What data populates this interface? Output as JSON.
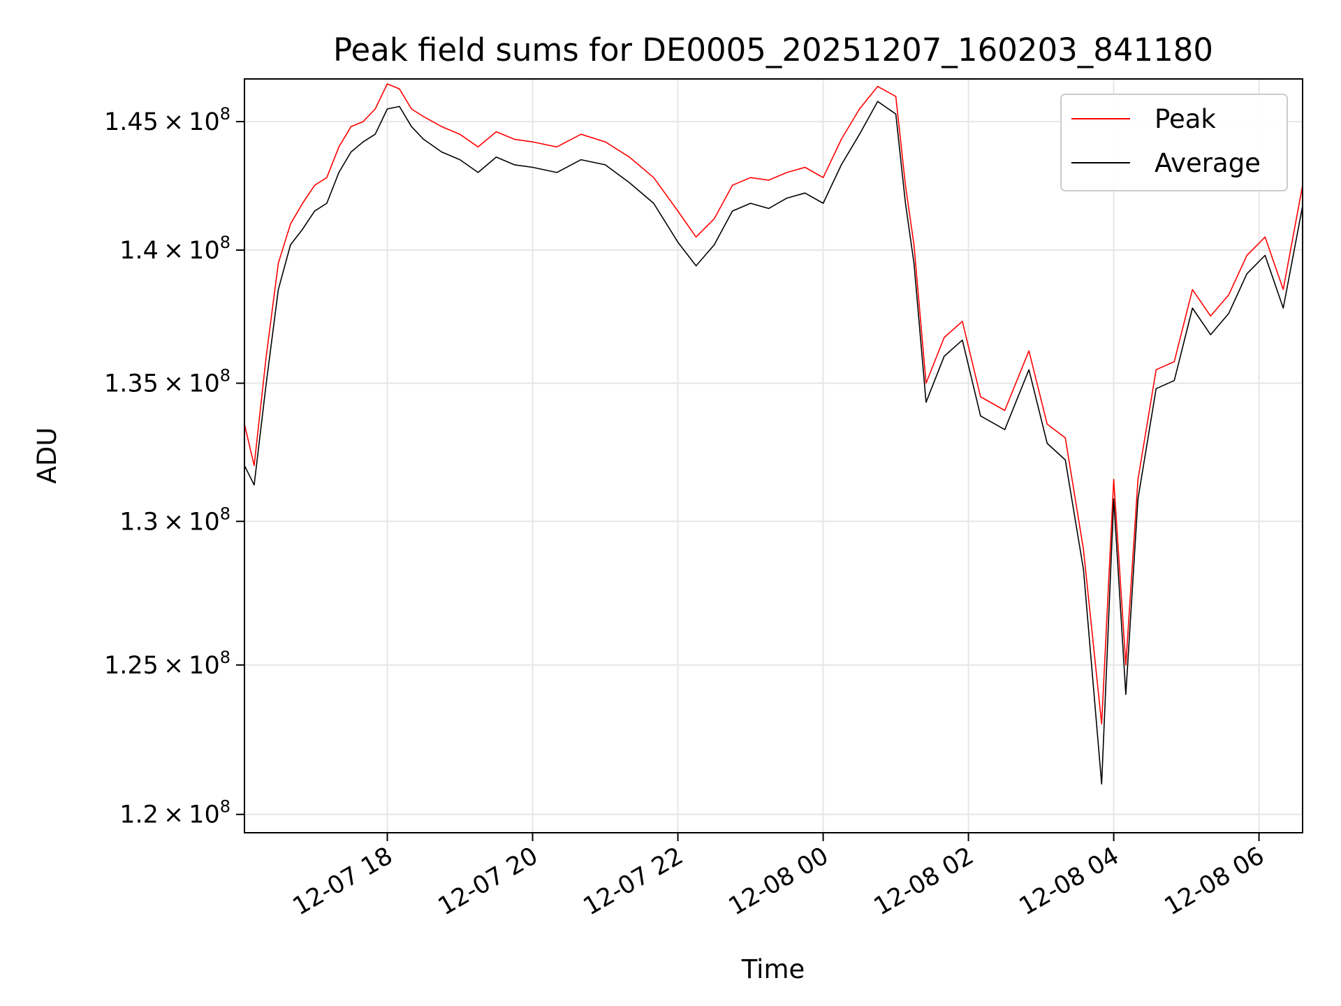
{
  "chart_data": {
    "type": "line",
    "title": "Peak field sums for DE0005_20251207_160203_841180",
    "xlabel": "Time",
    "ylabel": "ADU",
    "x_range": [
      "2025-12-07 16:02",
      "2025-12-08 06:36"
    ],
    "ylim": [
      119400000,
      146700000
    ],
    "x_ticks": [
      {
        "t": "2025-12-07 18:00",
        "label": "12-07 18"
      },
      {
        "t": "2025-12-07 20:00",
        "label": "12-07 20"
      },
      {
        "t": "2025-12-07 22:00",
        "label": "12-07 22"
      },
      {
        "t": "2025-12-08 00:00",
        "label": "12-08 00"
      },
      {
        "t": "2025-12-08 02:00",
        "label": "12-08 02"
      },
      {
        "t": "2025-12-08 04:00",
        "label": "12-08 04"
      },
      {
        "t": "2025-12-08 06:00",
        "label": "12-08 06"
      }
    ],
    "y_ticks": [
      {
        "value": 120000000,
        "mantissa": "1.2",
        "exponent": "8"
      },
      {
        "value": 125000000,
        "mantissa": "1.25",
        "exponent": "8"
      },
      {
        "value": 130000000,
        "mantissa": "1.3",
        "exponent": "8"
      },
      {
        "value": 135000000,
        "mantissa": "1.35",
        "exponent": "8"
      },
      {
        "value": 140000000,
        "mantissa": "1.4",
        "exponent": "8"
      },
      {
        "value": 145000000,
        "mantissa": "1.45",
        "exponent": "8"
      }
    ],
    "grid": true,
    "legend_position": "top-right",
    "series": [
      {
        "name": "Peak",
        "color": "#ff0000",
        "points": [
          [
            "2025-12-07 16:02",
            133500000
          ],
          [
            "2025-12-07 16:10",
            132000000
          ],
          [
            "2025-12-07 16:20",
            136000000
          ],
          [
            "2025-12-07 16:30",
            139500000
          ],
          [
            "2025-12-07 16:40",
            141000000
          ],
          [
            "2025-12-07 16:50",
            141800000
          ],
          [
            "2025-12-07 17:00",
            142500000
          ],
          [
            "2025-12-07 17:10",
            142800000
          ],
          [
            "2025-12-07 17:20",
            144000000
          ],
          [
            "2025-12-07 17:30",
            144800000
          ],
          [
            "2025-12-07 17:40",
            145000000
          ],
          [
            "2025-12-07 17:50",
            145500000
          ],
          [
            "2025-12-07 18:00",
            146500000
          ],
          [
            "2025-12-07 18:10",
            146300000
          ],
          [
            "2025-12-07 18:20",
            145500000
          ],
          [
            "2025-12-07 18:30",
            145200000
          ],
          [
            "2025-12-07 18:45",
            144800000
          ],
          [
            "2025-12-07 19:00",
            144500000
          ],
          [
            "2025-12-07 19:15",
            144000000
          ],
          [
            "2025-12-07 19:30",
            144600000
          ],
          [
            "2025-12-07 19:45",
            144300000
          ],
          [
            "2025-12-07 20:00",
            144200000
          ],
          [
            "2025-12-07 20:20",
            144000000
          ],
          [
            "2025-12-07 20:40",
            144500000
          ],
          [
            "2025-12-07 21:00",
            144200000
          ],
          [
            "2025-12-07 21:20",
            143600000
          ],
          [
            "2025-12-07 21:40",
            142800000
          ],
          [
            "2025-12-07 22:00",
            141500000
          ],
          [
            "2025-12-07 22:15",
            140500000
          ],
          [
            "2025-12-07 22:30",
            141200000
          ],
          [
            "2025-12-07 22:45",
            142500000
          ],
          [
            "2025-12-07 23:00",
            142800000
          ],
          [
            "2025-12-07 23:15",
            142700000
          ],
          [
            "2025-12-07 23:30",
            143000000
          ],
          [
            "2025-12-07 23:45",
            143200000
          ],
          [
            "2025-12-08 00:00",
            142800000
          ],
          [
            "2025-12-08 00:15",
            144300000
          ],
          [
            "2025-12-08 00:30",
            145500000
          ],
          [
            "2025-12-08 00:45",
            146400000
          ],
          [
            "2025-12-08 01:00",
            146000000
          ],
          [
            "2025-12-08 01:08",
            142500000
          ],
          [
            "2025-12-08 01:15",
            140200000
          ],
          [
            "2025-12-08 01:25",
            135000000
          ],
          [
            "2025-12-08 01:40",
            136700000
          ],
          [
            "2025-12-08 01:55",
            137300000
          ],
          [
            "2025-12-08 02:10",
            134500000
          ],
          [
            "2025-12-08 02:30",
            134000000
          ],
          [
            "2025-12-08 02:50",
            136200000
          ],
          [
            "2025-12-08 03:05",
            133500000
          ],
          [
            "2025-12-08 03:20",
            133000000
          ],
          [
            "2025-12-08 03:35",
            129000000
          ],
          [
            "2025-12-08 03:50",
            123000000
          ],
          [
            "2025-12-08 04:00",
            131500000
          ],
          [
            "2025-12-08 04:10",
            125000000
          ],
          [
            "2025-12-08 04:20",
            131500000
          ],
          [
            "2025-12-08 04:35",
            135500000
          ],
          [
            "2025-12-08 04:50",
            135800000
          ],
          [
            "2025-12-08 05:05",
            138500000
          ],
          [
            "2025-12-08 05:20",
            137500000
          ],
          [
            "2025-12-08 05:35",
            138300000
          ],
          [
            "2025-12-08 05:50",
            139800000
          ],
          [
            "2025-12-08 06:05",
            140500000
          ],
          [
            "2025-12-08 06:20",
            138500000
          ],
          [
            "2025-12-08 06:36",
            142500000
          ]
        ]
      },
      {
        "name": "Average",
        "color": "#000000",
        "points": [
          [
            "2025-12-07 16:02",
            132000000
          ],
          [
            "2025-12-07 16:10",
            131300000
          ],
          [
            "2025-12-07 16:20",
            135000000
          ],
          [
            "2025-12-07 16:30",
            138500000
          ],
          [
            "2025-12-07 16:40",
            140200000
          ],
          [
            "2025-12-07 16:50",
            140800000
          ],
          [
            "2025-12-07 17:00",
            141500000
          ],
          [
            "2025-12-07 17:10",
            141800000
          ],
          [
            "2025-12-07 17:20",
            143000000
          ],
          [
            "2025-12-07 17:30",
            143800000
          ],
          [
            "2025-12-07 17:40",
            144200000
          ],
          [
            "2025-12-07 17:50",
            144500000
          ],
          [
            "2025-12-07 18:00",
            145500000
          ],
          [
            "2025-12-07 18:10",
            145600000
          ],
          [
            "2025-12-07 18:20",
            144800000
          ],
          [
            "2025-12-07 18:30",
            144300000
          ],
          [
            "2025-12-07 18:45",
            143800000
          ],
          [
            "2025-12-07 19:00",
            143500000
          ],
          [
            "2025-12-07 19:15",
            143000000
          ],
          [
            "2025-12-07 19:30",
            143600000
          ],
          [
            "2025-12-07 19:45",
            143300000
          ],
          [
            "2025-12-07 20:00",
            143200000
          ],
          [
            "2025-12-07 20:20",
            143000000
          ],
          [
            "2025-12-07 20:40",
            143500000
          ],
          [
            "2025-12-07 21:00",
            143300000
          ],
          [
            "2025-12-07 21:20",
            142600000
          ],
          [
            "2025-12-07 21:40",
            141800000
          ],
          [
            "2025-12-07 22:00",
            140300000
          ],
          [
            "2025-12-07 22:15",
            139400000
          ],
          [
            "2025-12-07 22:30",
            140200000
          ],
          [
            "2025-12-07 22:45",
            141500000
          ],
          [
            "2025-12-07 23:00",
            141800000
          ],
          [
            "2025-12-07 23:15",
            141600000
          ],
          [
            "2025-12-07 23:30",
            142000000
          ],
          [
            "2025-12-07 23:45",
            142200000
          ],
          [
            "2025-12-08 00:00",
            141800000
          ],
          [
            "2025-12-08 00:15",
            143300000
          ],
          [
            "2025-12-08 00:30",
            144500000
          ],
          [
            "2025-12-08 00:45",
            145800000
          ],
          [
            "2025-12-08 01:00",
            145300000
          ],
          [
            "2025-12-08 01:08",
            141800000
          ],
          [
            "2025-12-08 01:15",
            139500000
          ],
          [
            "2025-12-08 01:25",
            134300000
          ],
          [
            "2025-12-08 01:40",
            136000000
          ],
          [
            "2025-12-08 01:55",
            136600000
          ],
          [
            "2025-12-08 02:10",
            133800000
          ],
          [
            "2025-12-08 02:30",
            133300000
          ],
          [
            "2025-12-08 02:50",
            135500000
          ],
          [
            "2025-12-08 03:05",
            132800000
          ],
          [
            "2025-12-08 03:20",
            132200000
          ],
          [
            "2025-12-08 03:35",
            128300000
          ],
          [
            "2025-12-08 03:50",
            121000000
          ],
          [
            "2025-12-08 04:00",
            130800000
          ],
          [
            "2025-12-08 04:10",
            124000000
          ],
          [
            "2025-12-08 04:20",
            130800000
          ],
          [
            "2025-12-08 04:35",
            134800000
          ],
          [
            "2025-12-08 04:50",
            135100000
          ],
          [
            "2025-12-08 05:05",
            137800000
          ],
          [
            "2025-12-08 05:20",
            136800000
          ],
          [
            "2025-12-08 05:35",
            137600000
          ],
          [
            "2025-12-08 05:50",
            139100000
          ],
          [
            "2025-12-08 06:05",
            139800000
          ],
          [
            "2025-12-08 06:20",
            137800000
          ],
          [
            "2025-12-08 06:36",
            141700000
          ]
        ]
      }
    ]
  }
}
